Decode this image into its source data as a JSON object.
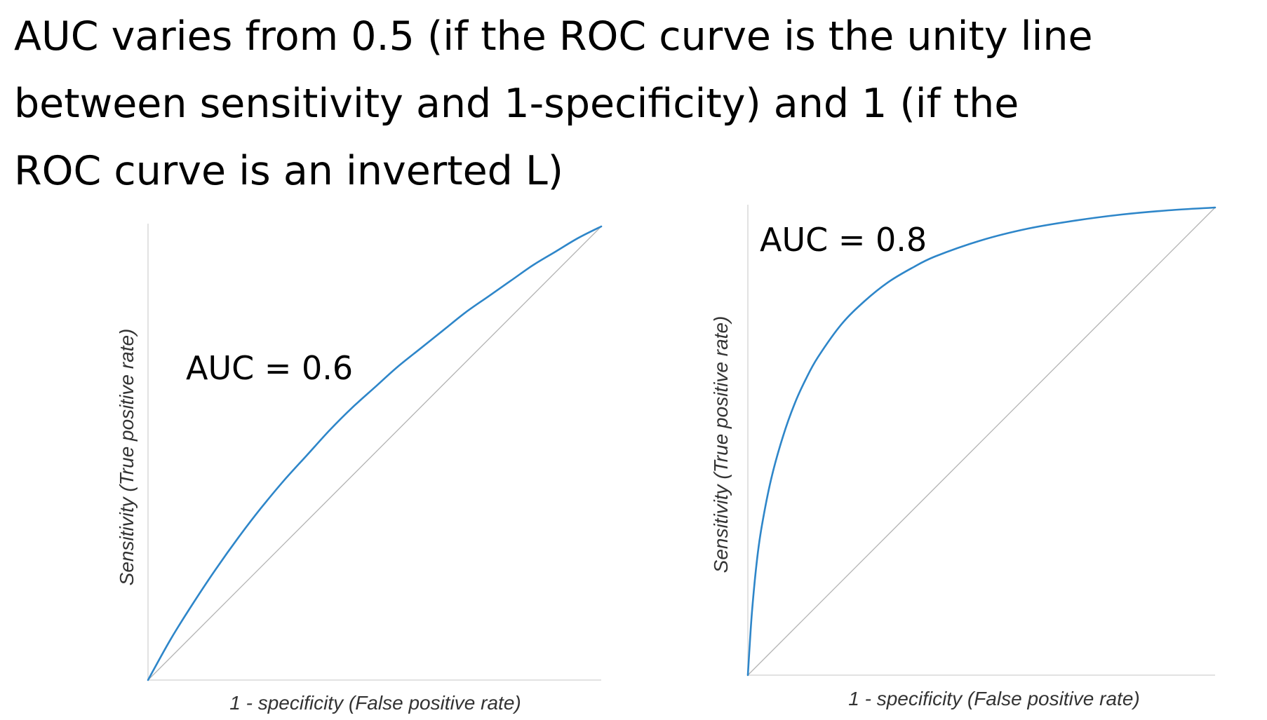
{
  "slide": {
    "heading_lines": [
      "AUC varies from 0.5 (if the ROC curve is the unity line",
      "between sensitivity and 1-specificity) and 1 (if the",
      "ROC curve is an inverted L)"
    ]
  },
  "chart_data": [
    {
      "type": "line",
      "title": "",
      "xlabel": "1 - specificity (False positive rate)",
      "ylabel": "Sensitivity (True positive rate)",
      "xlim": [
        0,
        1
      ],
      "ylim": [
        0,
        1
      ],
      "grid": false,
      "legend": "none",
      "annotation": "AUC = 0.6",
      "colors": {
        "curve": "#2e86c9",
        "reference": "#b3b3b3",
        "axis": "#d9d9d9"
      },
      "series": [
        {
          "x": [
            0,
            0.05,
            0.1,
            0.15,
            0.2,
            0.25,
            0.3,
            0.35,
            0.4,
            0.45,
            0.5,
            0.55,
            0.6,
            0.65,
            0.7,
            0.75,
            0.8,
            0.85,
            0.9,
            0.95,
            1
          ],
          "y": [
            0,
            0.09,
            0.17,
            0.245,
            0.315,
            0.38,
            0.44,
            0.495,
            0.55,
            0.6,
            0.645,
            0.69,
            0.73,
            0.77,
            0.81,
            0.845,
            0.88,
            0.915,
            0.945,
            0.975,
            1
          ]
        },
        {
          "x": [
            0,
            1
          ],
          "y": [
            0,
            1
          ]
        }
      ]
    },
    {
      "type": "line",
      "title": "",
      "xlabel": "1 - specificity (False positive rate)",
      "ylabel": "Sensitivity (True positive rate)",
      "xlim": [
        0,
        1
      ],
      "ylim": [
        0,
        1
      ],
      "grid": false,
      "legend": "none",
      "annotation": "AUC = 0.8",
      "colors": {
        "curve": "#2e86c9",
        "reference": "#b3b3b3",
        "axis": "#d9d9d9"
      },
      "series": [
        {
          "x": [
            0,
            0.005,
            0.01,
            0.02,
            0.03,
            0.05,
            0.075,
            0.1,
            0.125,
            0.15,
            0.2,
            0.25,
            0.3,
            0.35,
            0.4,
            0.5,
            0.6,
            0.7,
            0.8,
            0.9,
            1
          ],
          "y": [
            0,
            0.08,
            0.15,
            0.25,
            0.32,
            0.42,
            0.51,
            0.58,
            0.635,
            0.68,
            0.75,
            0.8,
            0.84,
            0.87,
            0.895,
            0.93,
            0.955,
            0.972,
            0.985,
            0.994,
            1
          ]
        },
        {
          "x": [
            0,
            1
          ],
          "y": [
            0,
            1
          ]
        }
      ]
    }
  ]
}
